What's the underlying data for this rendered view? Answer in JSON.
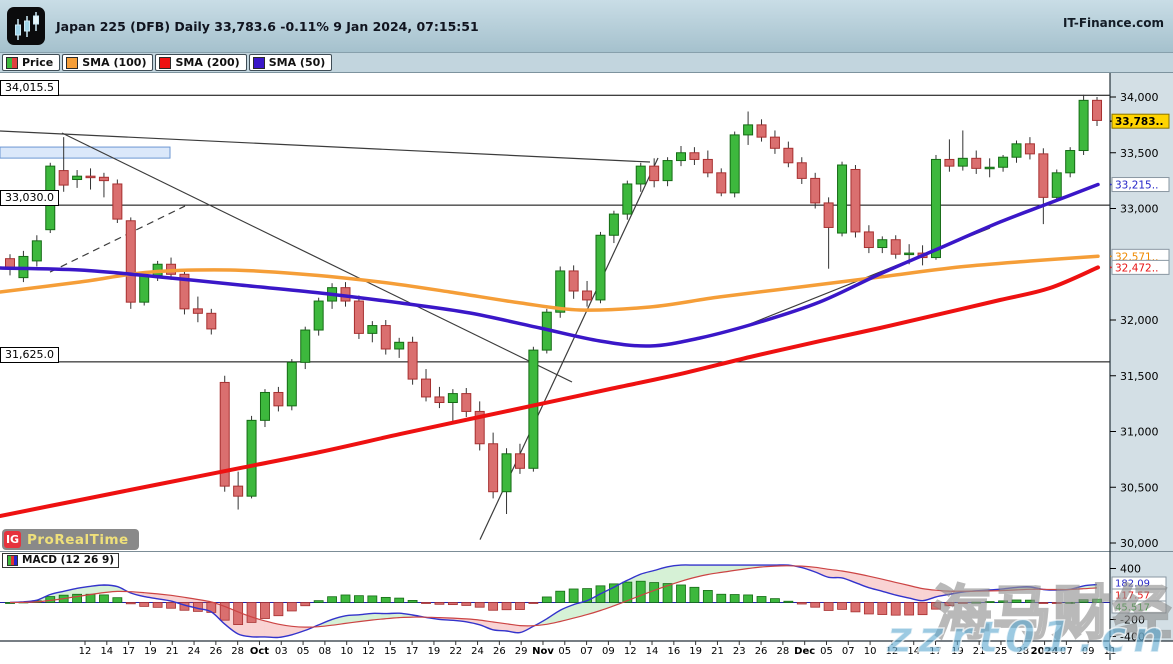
{
  "window": {
    "title": "Japan 225 (DFB) Daily 33,783.6 -0.11% 9 Jan 2024, 07:15:51",
    "brand": "IT-Finance.com"
  },
  "legend": {
    "items": [
      {
        "id": "price",
        "label": "Price",
        "chip": [
          "#3db83d",
          "#e04040"
        ]
      },
      {
        "id": "sma100",
        "label": "SMA (100)",
        "chip": [
          "#f59e38",
          "#f59e38"
        ]
      },
      {
        "id": "sma200",
        "label": "SMA (200)",
        "chip": [
          "#ee1111",
          "#ee1111"
        ]
      },
      {
        "id": "sma50",
        "label": "SMA (50)",
        "chip": [
          "#3a17c8",
          "#3a17c8"
        ]
      }
    ]
  },
  "overlays": {
    "logo_ig": "IG",
    "logo_name": "ProRealTime",
    "macd_label": "MACD (12 26 9)",
    "watermark_cn": "海马财经",
    "watermark_url": "zzrt01.cn"
  },
  "price_axis": {
    "ticks": [
      {
        "label": "34,000",
        "price": 34000
      },
      {
        "label": "33,500",
        "price": 33500
      },
      {
        "label": "33,000",
        "price": 33000
      },
      {
        "label": "32,000",
        "price": 32000
      },
      {
        "label": "31,500",
        "price": 31500
      },
      {
        "label": "31,000",
        "price": 31000
      },
      {
        "label": "30,500",
        "price": 30500
      },
      {
        "label": "30,000",
        "price": 30000
      }
    ],
    "boxes": [
      {
        "label": "33,783..",
        "price": 33783,
        "bg": "#ffd400",
        "color": "#000000",
        "border": "#8a7400",
        "bold": true
      },
      {
        "label": "33,215..",
        "price": 33215,
        "bg": "#ffffff",
        "color": "#2525c8",
        "border": "#8a97a2",
        "bold": false
      },
      {
        "label": "32,571..",
        "price": 32571,
        "bg": "#ffffff",
        "color": "#f08a00",
        "border": "#8a97a2",
        "bold": false
      },
      {
        "label": "32,472..",
        "price": 32472,
        "bg": "#ffffff",
        "color": "#e81515",
        "border": "#8a97a2",
        "bold": false
      }
    ]
  },
  "macd_axis": {
    "ticks": [
      {
        "label": "400",
        "v": 400
      },
      {
        "label": "-200",
        "v": -200
      },
      {
        "label": "-400",
        "v": -400
      }
    ],
    "boxes": [
      {
        "label": "182.09",
        "color": "#2525c8",
        "top": 577
      },
      {
        "label": "117.57",
        "color": "#e81515",
        "top": 589
      },
      {
        "label": "45.517",
        "color": "#119911",
        "top": 601
      }
    ]
  },
  "chart_data": {
    "type": "candlestick",
    "instrument": "Japan 225 (DFB)",
    "timeframe": "Daily",
    "last_price": 33783.6,
    "change_pct": -0.11,
    "timestamp": "9 Jan 2024, 07:15:51",
    "ylim": [
      29900,
      34250
    ],
    "grid": false,
    "levels": [
      {
        "label": "34,015.5",
        "price": 34015.5
      },
      {
        "label": "33,030.0",
        "price": 33030
      },
      {
        "label": "31,625.0",
        "price": 31625
      }
    ],
    "x_labels": [
      "12",
      "14",
      "17",
      "19",
      "21",
      "24",
      "26",
      "28",
      "Oct",
      "03",
      "05",
      "08",
      "10",
      "12",
      "15",
      "17",
      "19",
      "22",
      "24",
      "26",
      "29",
      "Nov",
      "05",
      "07",
      "09",
      "12",
      "14",
      "16",
      "19",
      "21",
      "23",
      "26",
      "28",
      "Dec",
      "05",
      "07",
      "10",
      "12",
      "14",
      "17",
      "19",
      "21",
      "25",
      "28",
      "2024",
      "07",
      "09",
      "11"
    ],
    "candles": [
      [
        32550,
        32590,
        32400,
        32460
      ],
      [
        32380,
        32620,
        32340,
        32570
      ],
      [
        32530,
        32760,
        32480,
        32710
      ],
      [
        32810,
        33410,
        32780,
        33380
      ],
      [
        33340,
        33640,
        33150,
        33210
      ],
      [
        33260,
        33345,
        33185,
        33290
      ],
      [
        33290,
        33360,
        33170,
        33280
      ],
      [
        33280,
        33320,
        33100,
        33250
      ],
      [
        33220,
        33260,
        32870,
        32905
      ],
      [
        32890,
        32920,
        32100,
        32160
      ],
      [
        32160,
        32430,
        32130,
        32400
      ],
      [
        32400,
        32530,
        32350,
        32500
      ],
      [
        32500,
        32560,
        32360,
        32410
      ],
      [
        32410,
        32450,
        32050,
        32100
      ],
      [
        32100,
        32210,
        31980,
        32060
      ],
      [
        32060,
        32100,
        31870,
        31920
      ],
      [
        31440,
        31500,
        30460,
        30510
      ],
      [
        30510,
        30640,
        30300,
        30420
      ],
      [
        30420,
        31140,
        30400,
        31100
      ],
      [
        31100,
        31380,
        31040,
        31350
      ],
      [
        31350,
        31400,
        31180,
        31230
      ],
      [
        31230,
        31650,
        31190,
        31620
      ],
      [
        31620,
        31940,
        31560,
        31910
      ],
      [
        31910,
        32200,
        31860,
        32170
      ],
      [
        32170,
        32330,
        32100,
        32290
      ],
      [
        32290,
        32340,
        32120,
        32170
      ],
      [
        32170,
        32220,
        31830,
        31880
      ],
      [
        31880,
        31990,
        31800,
        31950
      ],
      [
        31950,
        32000,
        31690,
        31740
      ],
      [
        31740,
        31840,
        31660,
        31800
      ],
      [
        31800,
        31850,
        31420,
        31470
      ],
      [
        31470,
        31560,
        31270,
        31310
      ],
      [
        31310,
        31400,
        31210,
        31260
      ],
      [
        31260,
        31380,
        31070,
        31340
      ],
      [
        31340,
        31390,
        31130,
        31180
      ],
      [
        31180,
        31270,
        30830,
        30890
      ],
      [
        30890,
        30990,
        30400,
        30460
      ],
      [
        30460,
        30850,
        30260,
        30800
      ],
      [
        30800,
        30890,
        30620,
        30670
      ],
      [
        30670,
        31760,
        30640,
        31730
      ],
      [
        31730,
        32100,
        31700,
        32070
      ],
      [
        32070,
        32480,
        32020,
        32440
      ],
      [
        32440,
        32490,
        32190,
        32260
      ],
      [
        32260,
        32350,
        32120,
        32180
      ],
      [
        32180,
        32790,
        32150,
        32760
      ],
      [
        32760,
        32980,
        32690,
        32950
      ],
      [
        32950,
        33250,
        32900,
        33220
      ],
      [
        33220,
        33410,
        33150,
        33380
      ],
      [
        33380,
        33450,
        33190,
        33250
      ],
      [
        33250,
        33460,
        33200,
        33430
      ],
      [
        33430,
        33560,
        33380,
        33500
      ],
      [
        33500,
        33550,
        33390,
        33440
      ],
      [
        33440,
        33520,
        33280,
        33320
      ],
      [
        33320,
        33360,
        33110,
        33140
      ],
      [
        33140,
        33690,
        33100,
        33660
      ],
      [
        33660,
        33870,
        33570,
        33750
      ],
      [
        33750,
        33800,
        33600,
        33640
      ],
      [
        33640,
        33700,
        33490,
        33540
      ],
      [
        33540,
        33600,
        33370,
        33410
      ],
      [
        33410,
        33460,
        33220,
        33270
      ],
      [
        33270,
        33320,
        33000,
        33050
      ],
      [
        33050,
        33100,
        32460,
        32830
      ],
      [
        32780,
        33420,
        32750,
        33390
      ],
      [
        33350,
        33390,
        32740,
        32790
      ],
      [
        32790,
        32850,
        32600,
        32650
      ],
      [
        32650,
        32750,
        32600,
        32720
      ],
      [
        32720,
        32760,
        32550,
        32590
      ],
      [
        32590,
        32680,
        32500,
        32600
      ],
      [
        32600,
        32670,
        32490,
        32560
      ],
      [
        32560,
        33480,
        32540,
        33440
      ],
      [
        33440,
        33620,
        33330,
        33380
      ],
      [
        33380,
        33700,
        33340,
        33450
      ],
      [
        33450,
        33520,
        33310,
        33360
      ],
      [
        33360,
        33450,
        33280,
        33370
      ],
      [
        33370,
        33480,
        33330,
        33460
      ],
      [
        33460,
        33610,
        33410,
        33580
      ],
      [
        33580,
        33640,
        33440,
        33490
      ],
      [
        33490,
        33540,
        32860,
        33100
      ],
      [
        33100,
        33350,
        33060,
        33320
      ],
      [
        33320,
        33550,
        33280,
        33520
      ],
      [
        33520,
        34020,
        33480,
        33970
      ],
      [
        33970,
        34000,
        33740,
        33790
      ]
    ],
    "up_color": "#3db83d",
    "down_color": "#da6f6f",
    "sma50": {
      "color": "#3a17c8",
      "points": [
        [
          0,
          32466
        ],
        [
          80,
          32448
        ],
        [
          160,
          32386
        ],
        [
          240,
          32314
        ],
        [
          320,
          32242
        ],
        [
          400,
          32153
        ],
        [
          470,
          32063
        ],
        [
          540,
          31928
        ],
        [
          600,
          31812
        ],
        [
          650,
          31767
        ],
        [
          700,
          31839
        ],
        [
          760,
          31982
        ],
        [
          820,
          32162
        ],
        [
          880,
          32413
        ],
        [
          940,
          32646
        ],
        [
          1000,
          32879
        ],
        [
          1050,
          33050
        ],
        [
          1098,
          33215
        ]
      ]
    },
    "sma100": {
      "color": "#f59e38",
      "points": [
        [
          0,
          32251
        ],
        [
          80,
          32341
        ],
        [
          150,
          32430
        ],
        [
          230,
          32448
        ],
        [
          300,
          32413
        ],
        [
          380,
          32341
        ],
        [
          450,
          32251
        ],
        [
          520,
          32153
        ],
        [
          580,
          32090
        ],
        [
          650,
          32117
        ],
        [
          720,
          32207
        ],
        [
          800,
          32296
        ],
        [
          880,
          32386
        ],
        [
          960,
          32476
        ],
        [
          1030,
          32529
        ],
        [
          1098,
          32571
        ]
      ]
    },
    "sma200": {
      "color": "#ee1111",
      "points": [
        [
          0,
          30242
        ],
        [
          80,
          30386
        ],
        [
          160,
          30529
        ],
        [
          240,
          30672
        ],
        [
          320,
          30816
        ],
        [
          400,
          30977
        ],
        [
          470,
          31112
        ],
        [
          540,
          31246
        ],
        [
          610,
          31381
        ],
        [
          680,
          31515
        ],
        [
          750,
          31668
        ],
        [
          820,
          31811
        ],
        [
          880,
          31928
        ],
        [
          940,
          32053
        ],
        [
          1000,
          32179
        ],
        [
          1050,
          32287
        ],
        [
          1098,
          32472
        ]
      ]
    },
    "trendlines": [
      {
        "x1": 0,
        "p1": 33695,
        "x2": 650,
        "p2": 33417,
        "dash": false
      },
      {
        "x1": 62,
        "p1": 33677,
        "x2": 572,
        "p2": 31444,
        "dash": false
      },
      {
        "x1": 480,
        "p1": 30030,
        "x2": 658,
        "p2": 33453,
        "dash": false
      },
      {
        "x1": 735,
        "p1": 31911,
        "x2": 990,
        "p2": 32825,
        "dash": false
      },
      {
        "x1": 50,
        "p1": 32430,
        "x2": 185,
        "p2": 33022,
        "dash": true
      }
    ],
    "zone": {
      "x1": 0,
      "x2": 170,
      "top_price": 33551,
      "bottom_price": 33452,
      "fill": "#dbe8fa",
      "stroke": "#6b96d2"
    },
    "macd": {
      "params": "12 26 9",
      "last_macd": 182.09,
      "last_signal": 117.57,
      "last_hist": 45.517,
      "macd_color": "#3333cc",
      "signal_color": "#cc4444",
      "ylim": [
        -400,
        400
      ]
    }
  }
}
